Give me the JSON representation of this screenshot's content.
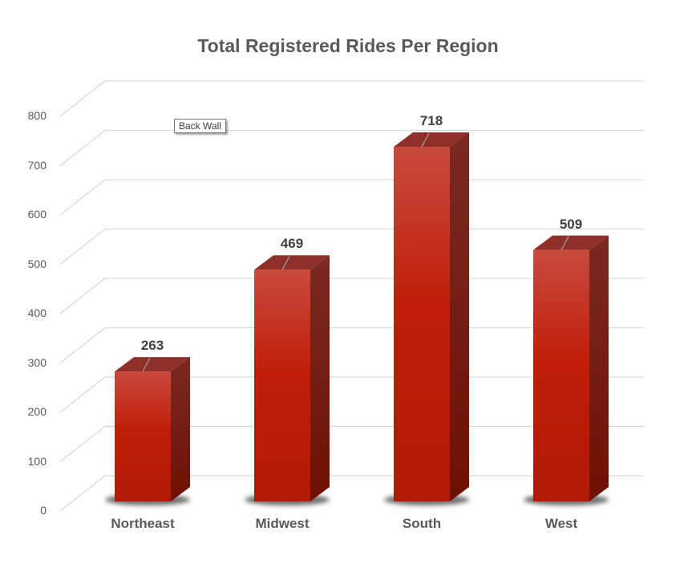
{
  "chart_data": {
    "type": "bar",
    "style": "3d-column",
    "title": "Total Registered Rides Per Region",
    "categories": [
      "Northeast",
      "Midwest",
      "South",
      "West"
    ],
    "values": [
      263,
      469,
      718,
      509
    ],
    "xlabel": "",
    "ylabel": "",
    "ylim": [
      0,
      800
    ],
    "yticks": [
      0,
      100,
      200,
      300,
      400,
      500,
      600,
      700,
      800
    ],
    "grid": true,
    "legend": null,
    "data_labels": true,
    "bar_color": "#C0200A"
  },
  "tooltip": {
    "text": "Back Wall"
  }
}
